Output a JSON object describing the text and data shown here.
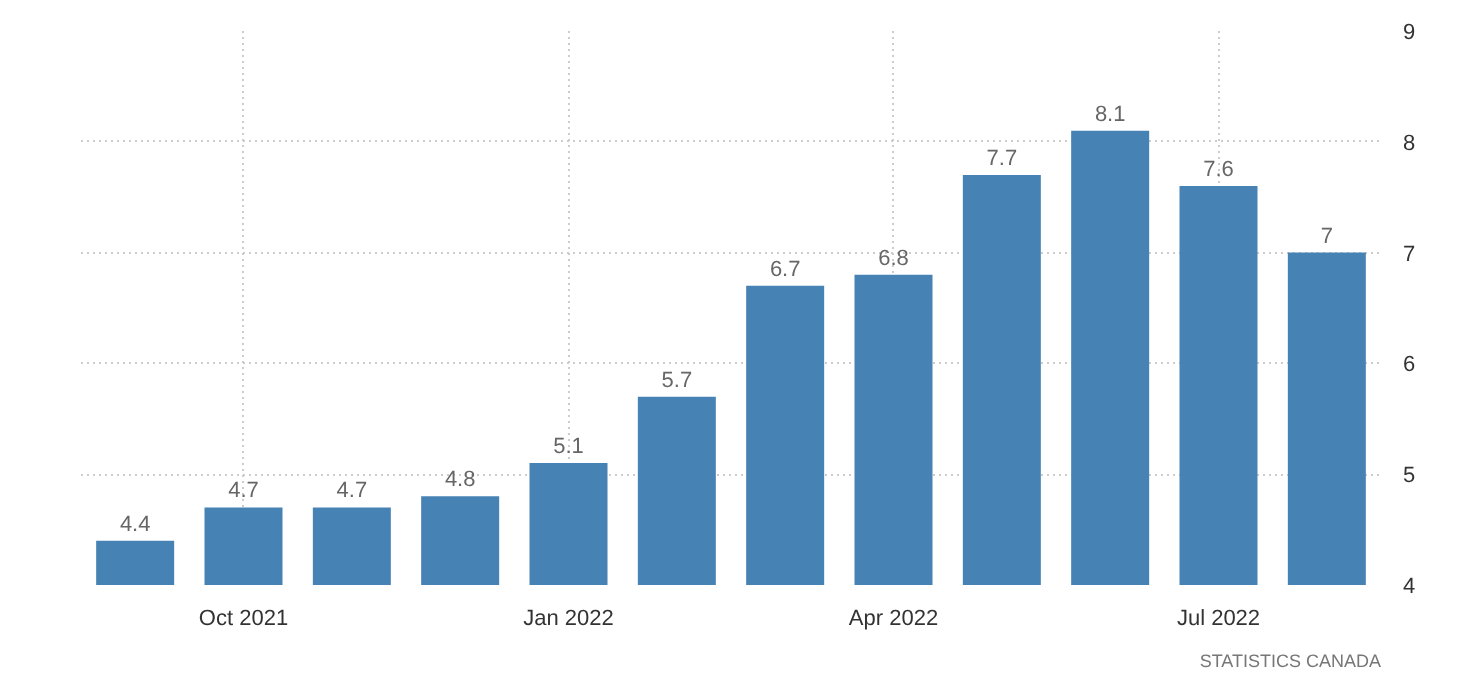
{
  "chart_data": {
    "type": "bar",
    "categories": [
      null,
      "Oct 2021",
      null,
      null,
      "Jan 2022",
      null,
      null,
      "Apr 2022",
      null,
      null,
      "Jul 2022",
      null
    ],
    "values": [
      4.4,
      4.7,
      4.7,
      4.8,
      5.1,
      5.7,
      6.7,
      6.8,
      7.7,
      8.1,
      7.6,
      7
    ],
    "color": "#4682b4",
    "ylim": [
      4,
      9
    ],
    "yticks": [
      4,
      5,
      6,
      7,
      8,
      9
    ],
    "grid": true,
    "data_labels": true,
    "annotations": [
      "STATISTICS CANADA"
    ]
  }
}
